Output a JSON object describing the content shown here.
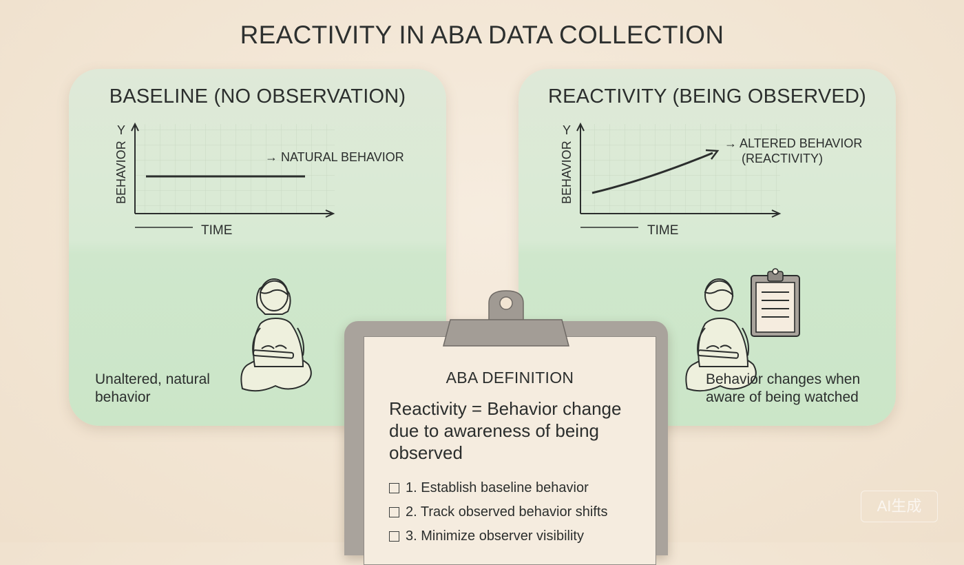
{
  "title": "REACTIVITY IN ABA DATA COLLECTION",
  "panels": {
    "left": {
      "title": "BASELINE (NO OBSERVATION)",
      "y_axis_letter": "Y",
      "y_label": "BEHAVIOR",
      "x_label": "TIME",
      "annotation": "→ NATURAL BEHAVIOR",
      "caption": "Unaltered, natural behavior",
      "figure_icon": "child-using-tablet-icon"
    },
    "right": {
      "title": "REACTIVITY (BEING OBSERVED)",
      "y_axis_letter": "Y",
      "y_label": "BEHAVIOR",
      "x_label": "TIME",
      "annotation_line1": "→ ALTERED BEHAVIOR",
      "annotation_line2": "(REACTIVITY)",
      "caption": "Behavior changes when aware of being watched",
      "figure_icon": "child-using-tablet-icon",
      "extra_icon": "clipboard-icon"
    }
  },
  "definition": {
    "heading": "ABA DEFINITION",
    "body": "Reactivity = Behavior change due to awareness of being observed",
    "steps": [
      "1. Establish baseline behavior",
      "2. Track observed behavior shifts",
      "3. Minimize observer visibility"
    ]
  },
  "watermark": "AI生成",
  "colors": {
    "background": "#f2e5d3",
    "panel_green": "#d8ead4",
    "clipboard_gray": "#a9a39c",
    "paper": "#f5ecdf",
    "ink": "#2b2e2d"
  }
}
